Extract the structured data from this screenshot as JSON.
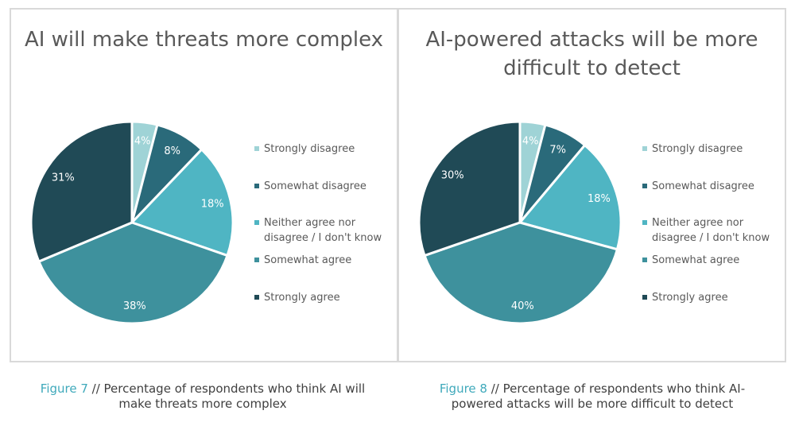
{
  "chart_data": [
    {
      "type": "pie",
      "title": "AI will make threats more complex",
      "categories": [
        "Strongly disagree",
        "Somewhat disagree",
        "Neither agree nor disagree / I don't know",
        "Somewhat agree",
        "Strongly agree"
      ],
      "values": [
        4,
        8,
        18,
        38,
        31
      ],
      "data_labels": [
        "4%",
        "8%",
        "18%",
        "38%",
        "31%"
      ],
      "colors": [
        "#9fd3d6",
        "#2a6a7a",
        "#4fb5c3",
        "#3e919d",
        "#204a56"
      ],
      "legend_position": "right"
    },
    {
      "type": "pie",
      "title": "AI-powered attacks will be more difficult to detect",
      "categories": [
        "Strongly disagree",
        "Somewhat disagree",
        "Neither agree nor disagree / I don't know",
        "Somewhat agree",
        "Strongly agree"
      ],
      "values": [
        4,
        7,
        18,
        40,
        30
      ],
      "data_labels": [
        "4%",
        "7%",
        "18%",
        "40%",
        "30%"
      ],
      "colors": [
        "#9fd3d6",
        "#2a6a7a",
        "#4fb5c3",
        "#3e919d",
        "#204a56"
      ],
      "legend_position": "right"
    }
  ],
  "legend_labels": [
    "Strongly disagree",
    "Somewhat disagree",
    "Neither agree nor\ndisagree / I don't know",
    "Somewhat agree",
    "Strongly agree"
  ],
  "captions": [
    {
      "figure": "Figure 7",
      "text": " // Percentage of respondents who think AI will make threats more complex"
    },
    {
      "figure": "Figure 8",
      "text": " // Percentage of respondents who think AI-powered attacks will be more difficult to detect"
    }
  ],
  "title_lines": [
    [
      "AI will make threats more complex"
    ],
    [
      "AI-powered attacks will be more",
      "difficult to detect"
    ]
  ]
}
